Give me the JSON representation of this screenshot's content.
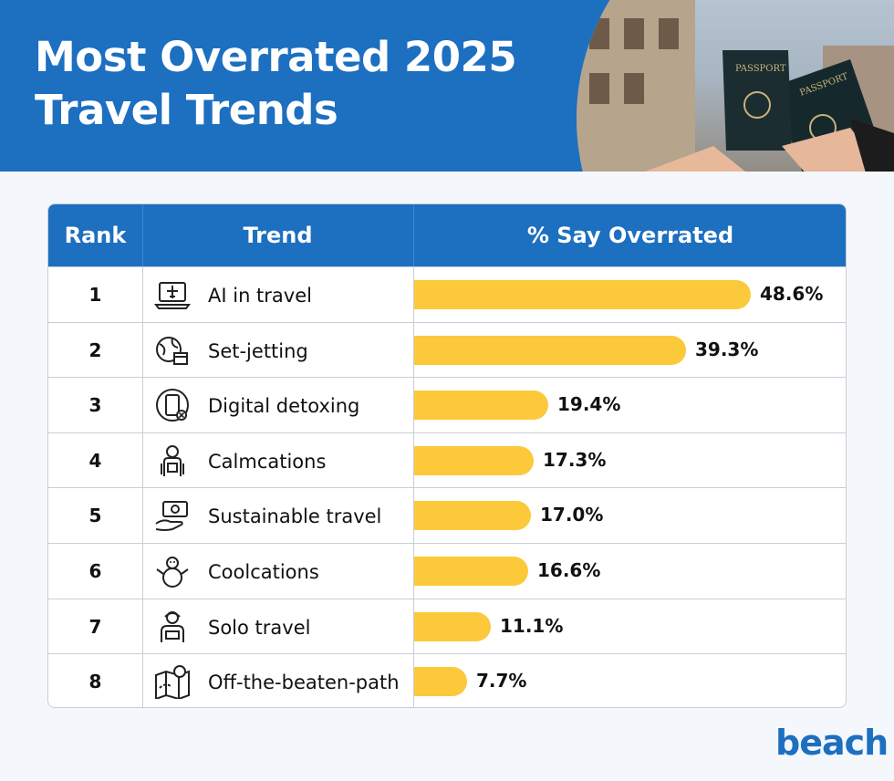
{
  "header": {
    "title_line1": "Most Overrated 2025",
    "title_line2": "Travel Trends"
  },
  "colors": {
    "brand_blue": "#1d6fc0",
    "bar_yellow": "#fcc93b"
  },
  "table": {
    "col_rank": "Rank",
    "col_trend": "Trend",
    "col_pct": "% Say Overrated"
  },
  "chart_data": {
    "type": "bar",
    "orientation": "horizontal",
    "title": "Most Overrated 2025 Travel Trends",
    "xlabel": "% Say Overrated",
    "xlim": [
      0,
      55
    ],
    "grid": false,
    "rows": [
      {
        "rank": "1",
        "trend": "AI in travel",
        "value": 48.6,
        "label": "48.6%",
        "icon": "laptop-plane-icon"
      },
      {
        "rank": "2",
        "trend": "Set-jetting",
        "value": 39.3,
        "label": "39.3%",
        "icon": "globe-clapperboard-icon"
      },
      {
        "rank": "3",
        "trend": "Digital detoxing",
        "value": 19.4,
        "label": "19.4%",
        "icon": "phone-off-icon"
      },
      {
        "rank": "4",
        "trend": "Calmcations",
        "value": 17.3,
        "label": "17.3%",
        "icon": "backpacker-icon"
      },
      {
        "rank": "5",
        "trend": "Sustainable travel",
        "value": 17.0,
        "label": "17.0%",
        "icon": "hand-money-icon"
      },
      {
        "rank": "6",
        "trend": "Coolcations",
        "value": 16.6,
        "label": "16.6%",
        "icon": "snowman-icon"
      },
      {
        "rank": "7",
        "trend": "Solo travel",
        "value": 11.1,
        "label": "11.1%",
        "icon": "solo-traveler-icon"
      },
      {
        "rank": "8",
        "trend": "Off-the-beaten-path",
        "value": 7.7,
        "label": "7.7%",
        "icon": "map-pin-icon"
      }
    ]
  },
  "brand": {
    "logo": "beach"
  }
}
